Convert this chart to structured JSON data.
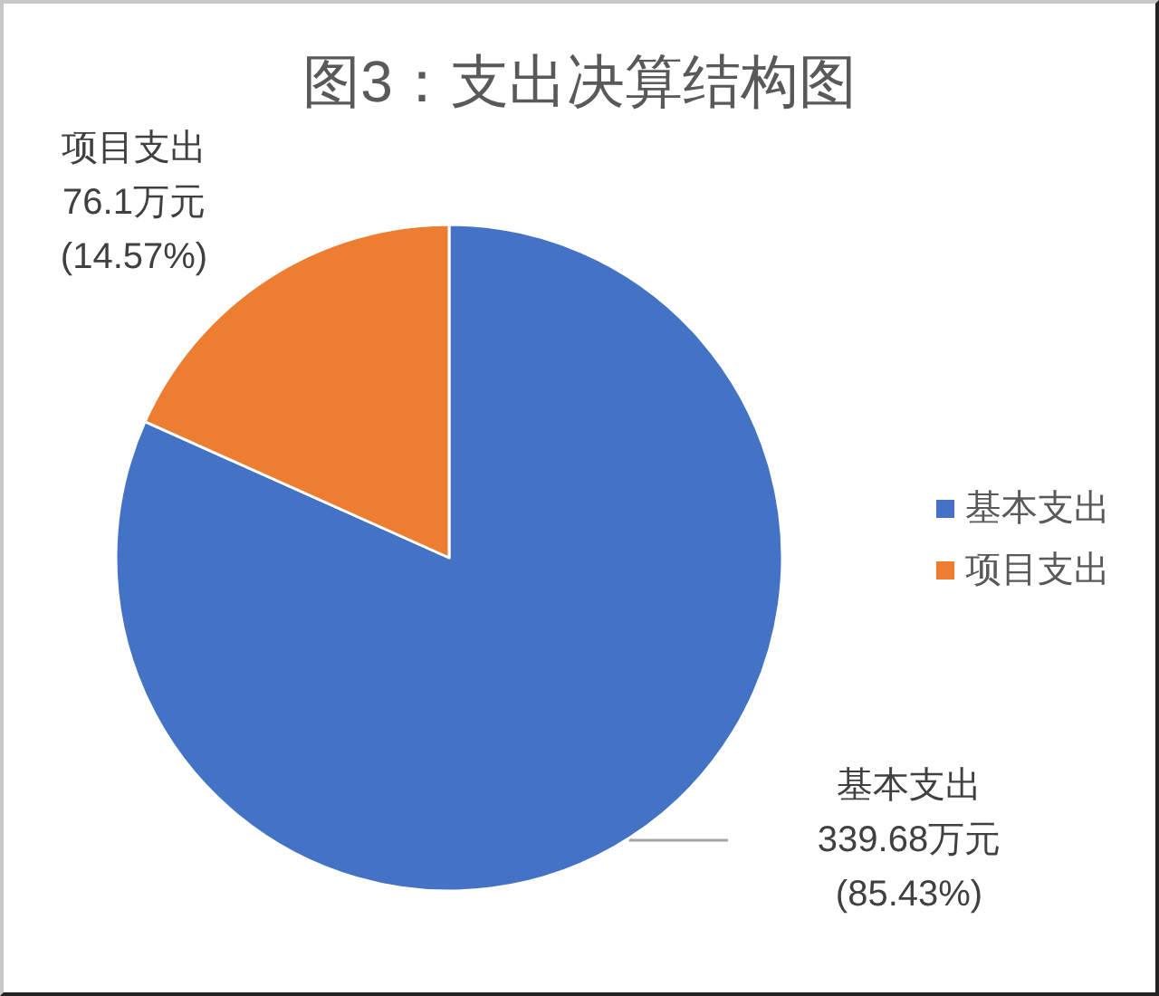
{
  "chart_data": {
    "type": "pie",
    "title": "图3：支出决算结构图",
    "categories": [
      "基本支出",
      "项目支出"
    ],
    "values": [
      339.68,
      76.1
    ],
    "colors": [
      "#4472c4",
      "#ed7d31"
    ],
    "value_labels": [
      "339.68万元 (85.43%)",
      "76.1万元 (14.57%)"
    ],
    "legend": "right"
  }
}
